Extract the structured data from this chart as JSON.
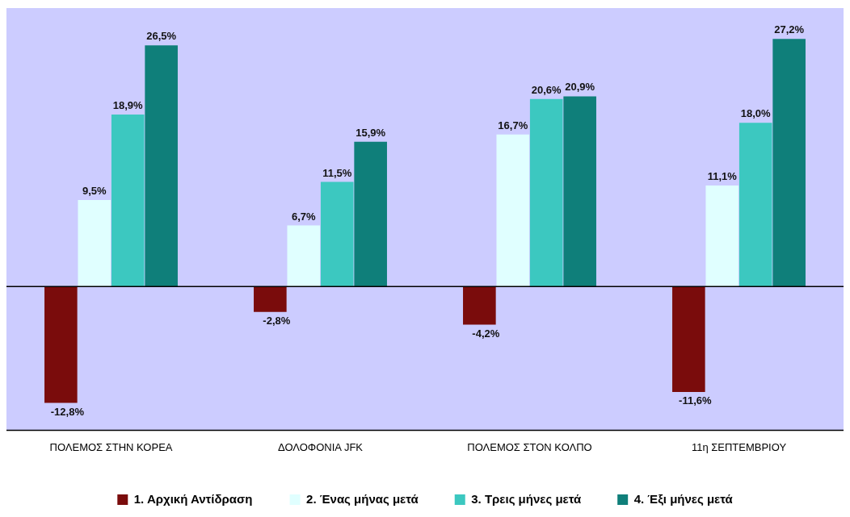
{
  "chart_data": {
    "type": "bar",
    "categories": [
      "ΠΟΛΕΜΟΣ ΣΤΗΝ ΚΟΡΕΑ",
      "ΔΟΛΟΦΟΝΙΑ JFK",
      "ΠΟΛΕΜΟΣ ΣΤΟΝ ΚΟΛΠΟ",
      "11η ΣΕΠΤΕΜΒΡΙΟΥ"
    ],
    "series": [
      {
        "name": "1. Αρχική Αντίδραση",
        "color": "#7a0c0c",
        "values": [
          -12.8,
          -2.8,
          -4.2,
          -11.6
        ],
        "value_labels": [
          "-12,8%",
          "-2,8%",
          "-4,2%",
          "-11,6%"
        ]
      },
      {
        "name": "2. Ένας μήνας μετά",
        "color": "#e0ffff",
        "values": [
          9.5,
          6.7,
          16.7,
          11.1
        ],
        "value_labels": [
          "9,5%",
          "6,7%",
          "16,7%",
          "11,1%"
        ]
      },
      {
        "name": "3. Τρεις μήνες μετά",
        "color": "#3cc8c0",
        "values": [
          18.9,
          11.5,
          20.6,
          18.0
        ],
        "value_labels": [
          "18,9%",
          "11,5%",
          "20,6%",
          "18,0%"
        ]
      },
      {
        "name": "4. Έξι μήνες μετά",
        "color": "#0f7f7a",
        "values": [
          26.5,
          15.9,
          20.9,
          27.2
        ],
        "value_labels": [
          "26,5%",
          "15,9%",
          "20,9%",
          "27,2%"
        ]
      }
    ],
    "legend": "bottom",
    "grid": false,
    "tick_labels": "x"
  }
}
